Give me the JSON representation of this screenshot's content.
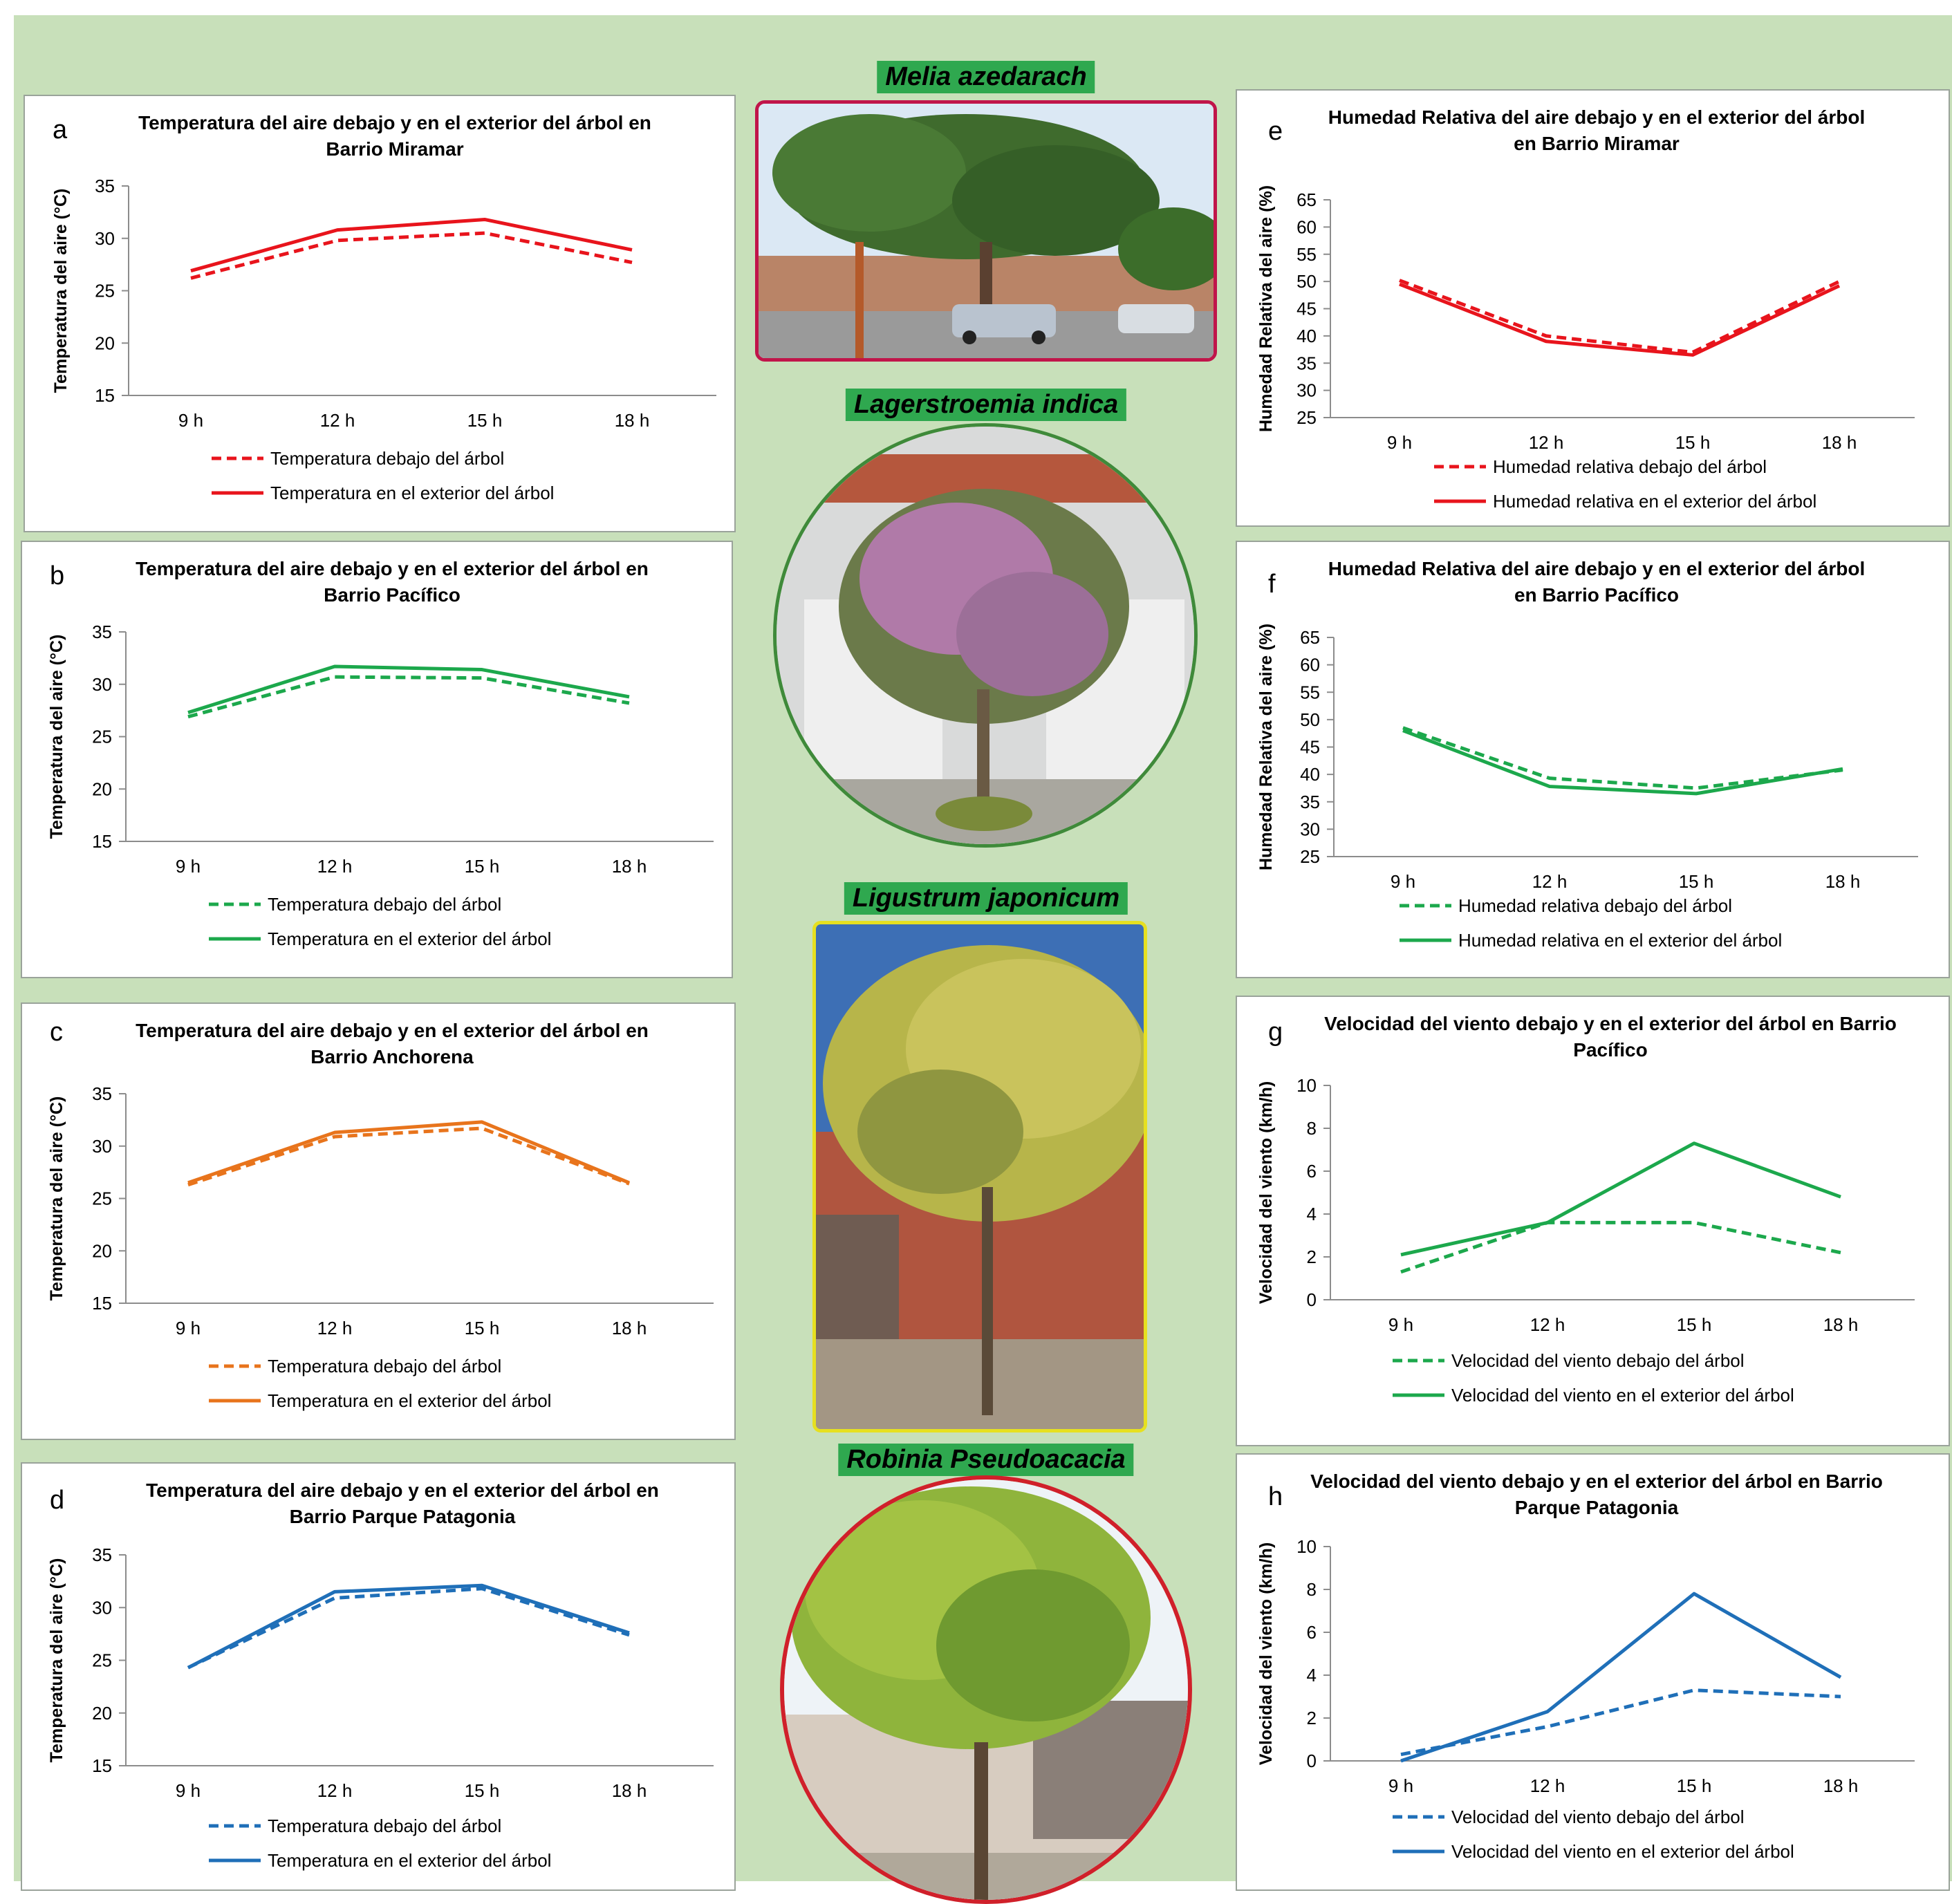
{
  "species_labels": [
    "Melia azedarach",
    "Lagerstroemia indica",
    "Ligustrum japonicum",
    "Robinia Pseudoacacia"
  ],
  "chart_data": [
    {
      "type": "line",
      "letter": "a",
      "title": "Temperatura del aire debajo y en el exterior del árbol en Barrio Miramar",
      "ylabel": "Temperatura del aire (°C)",
      "xlabel": "",
      "categories": [
        "9 h",
        "12 h",
        "15 h",
        "18 h"
      ],
      "ylim": [
        15,
        35
      ],
      "yticks": [
        15,
        20,
        25,
        30,
        35
      ],
      "color": "#e8141c",
      "series": [
        {
          "name": "Temperatura debajo del árbol",
          "style": "dashed",
          "values": [
            26.2,
            29.8,
            30.5,
            27.7
          ]
        },
        {
          "name": "Temperatura en el exterior del árbol",
          "style": "solid",
          "values": [
            26.9,
            30.8,
            31.8,
            28.9
          ]
        }
      ]
    },
    {
      "type": "line",
      "letter": "b",
      "title": "Temperatura del aire debajo y en el exterior del árbol en Barrio Pacífico",
      "ylabel": "Temperatura del aire (°C)",
      "xlabel": "",
      "categories": [
        "9 h",
        "12 h",
        "15 h",
        "18 h"
      ],
      "ylim": [
        15,
        35
      ],
      "yticks": [
        15,
        20,
        25,
        30,
        35
      ],
      "color": "#1ca84c",
      "series": [
        {
          "name": "Temperatura debajo del árbol",
          "style": "dashed",
          "values": [
            26.9,
            30.7,
            30.6,
            28.2
          ]
        },
        {
          "name": "Temperatura en el exterior del árbol",
          "style": "solid",
          "values": [
            27.3,
            31.7,
            31.4,
            28.8
          ]
        }
      ]
    },
    {
      "type": "line",
      "letter": "c",
      "title": "Temperatura del aire debajo y en el exterior del árbol en Barrio Anchorena",
      "ylabel": "Temperatura del aire (°C)",
      "xlabel": "",
      "categories": [
        "9 h",
        "12 h",
        "15 h",
        "18 h"
      ],
      "ylim": [
        15,
        35
      ],
      "yticks": [
        15,
        20,
        25,
        30,
        35
      ],
      "color": "#e8741c",
      "series": [
        {
          "name": "Temperatura debajo del árbol",
          "style": "dashed",
          "values": [
            26.3,
            30.9,
            31.7,
            26.4
          ]
        },
        {
          "name": "Temperatura en el exterior del árbol",
          "style": "solid",
          "values": [
            26.5,
            31.3,
            32.3,
            26.5
          ]
        }
      ]
    },
    {
      "type": "line",
      "letter": "d",
      "title": "Temperatura del aire debajo y en el exterior del árbol en Barrio Parque Patagonia",
      "ylabel": "Temperatura del aire (°C)",
      "xlabel": "",
      "categories": [
        "9 h",
        "12 h",
        "15 h",
        "18 h"
      ],
      "ylim": [
        15,
        35
      ],
      "yticks": [
        15,
        20,
        25,
        30,
        35
      ],
      "color": "#1f6fb8",
      "series": [
        {
          "name": "Temperatura debajo del árbol",
          "style": "dashed",
          "values": [
            24.3,
            30.9,
            31.8,
            27.4
          ]
        },
        {
          "name": "Temperatura en el exterior del árbol",
          "style": "solid",
          "values": [
            24.3,
            31.5,
            32.1,
            27.6
          ]
        }
      ]
    },
    {
      "type": "line",
      "letter": "e",
      "title": "Humedad Relativa del aire debajo y en el exterior del árbol en Barrio Miramar",
      "ylabel": "Humedad Relativa del aire (%)",
      "xlabel": "",
      "categories": [
        "9 h",
        "12 h",
        "15 h",
        "18 h"
      ],
      "ylim": [
        25,
        65
      ],
      "yticks": [
        25,
        30,
        35,
        40,
        45,
        50,
        55,
        60,
        65
      ],
      "color": "#e8141c",
      "series": [
        {
          "name": "Humedad relativa debajo del árbol",
          "style": "dashed",
          "values": [
            50.2,
            40.0,
            37.0,
            50.0
          ]
        },
        {
          "name": "Humedad relativa en el exterior del árbol",
          "style": "solid",
          "values": [
            49.5,
            39.0,
            36.5,
            49.2
          ]
        }
      ]
    },
    {
      "type": "line",
      "letter": "f",
      "title": "Humedad Relativa del aire debajo y en el exterior del árbol en Barrio Pacífico",
      "ylabel": "Humedad Relativa del aire (%)",
      "xlabel": "",
      "categories": [
        "9 h",
        "12 h",
        "15 h",
        "18 h"
      ],
      "ylim": [
        25,
        65
      ],
      "yticks": [
        25,
        30,
        35,
        40,
        45,
        50,
        55,
        60,
        65
      ],
      "color": "#1ca84c",
      "series": [
        {
          "name": "Humedad relativa debajo del árbol",
          "style": "dashed",
          "values": [
            48.5,
            39.3,
            37.5,
            40.8
          ]
        },
        {
          "name": "Humedad relativa en el exterior del árbol",
          "style": "solid",
          "values": [
            48.0,
            37.8,
            36.5,
            41.0
          ]
        }
      ]
    },
    {
      "type": "line",
      "letter": "g",
      "title": "Velocidad del viento debajo y en el exterior del árbol en Barrio Pacífico",
      "ylabel": "Velocidad del viento (km/h)",
      "xlabel": "",
      "categories": [
        "9 h",
        "12 h",
        "15 h",
        "18 h"
      ],
      "ylim": [
        0,
        10
      ],
      "yticks": [
        0,
        2,
        4,
        6,
        8,
        10
      ],
      "color": "#1ca84c",
      "series": [
        {
          "name": "Velocidad del viento debajo del árbol",
          "style": "dashed",
          "values": [
            1.3,
            3.6,
            3.6,
            2.2
          ]
        },
        {
          "name": "Velocidad del viento en el exterior del árbol",
          "style": "solid",
          "values": [
            2.1,
            3.6,
            7.3,
            4.8
          ]
        }
      ]
    },
    {
      "type": "line",
      "letter": "h",
      "title": "Velocidad del viento debajo y en el exterior del árbol en Barrio Parque Patagonia",
      "ylabel": "Velocidad del viento (km/h)",
      "xlabel": "",
      "categories": [
        "9 h",
        "12 h",
        "15 h",
        "18 h"
      ],
      "ylim": [
        0,
        10
      ],
      "yticks": [
        0,
        2,
        4,
        6,
        8,
        10
      ],
      "color": "#1f6fb8",
      "series": [
        {
          "name": "Velocidad del viento debajo del árbol",
          "style": "dashed",
          "values": [
            0.3,
            1.6,
            3.3,
            3.0
          ]
        },
        {
          "name": "Velocidad del viento en el exterior del árbol",
          "style": "solid",
          "values": [
            0.0,
            2.3,
            7.8,
            3.9
          ]
        }
      ]
    }
  ]
}
